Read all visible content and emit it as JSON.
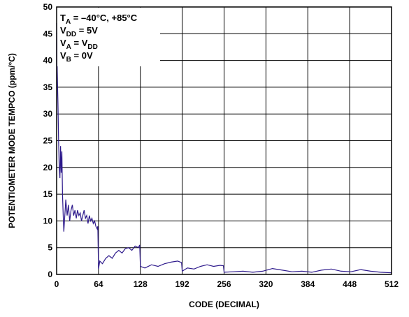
{
  "chart_data": {
    "type": "line",
    "xlabel": "CODE (DECIMAL)",
    "ylabel": "POTENTIOMETER MODE TEMPCO (ppm/°C)",
    "xlim": [
      0,
      512
    ],
    "ylim": [
      0,
      50
    ],
    "xticks": [
      0,
      64,
      128,
      192,
      256,
      320,
      384,
      448,
      512
    ],
    "yticks": [
      0,
      5,
      10,
      15,
      20,
      25,
      30,
      35,
      40,
      45,
      50
    ],
    "grid": true,
    "series_color": "#2e1a8c",
    "annotations": [
      {
        "main": "T",
        "sub": "A",
        "rest": " = –40°C, +85°C"
      },
      {
        "main": "V",
        "sub": "DD",
        "rest": " = 5V"
      },
      {
        "main": "V",
        "sub": "A",
        "rest": " = V",
        "sub2": "DD"
      },
      {
        "main": "V",
        "sub": "B",
        "rest": " = 0V"
      }
    ],
    "series": [
      {
        "x": [
          0,
          1,
          2,
          3,
          4,
          5,
          6,
          7,
          8,
          9,
          10,
          11,
          12,
          13,
          14,
          16,
          18,
          20,
          22,
          24,
          26,
          28,
          30,
          32,
          34,
          36,
          38,
          40,
          42,
          44,
          46,
          48,
          50,
          52,
          54,
          56,
          58,
          60,
          62,
          63,
          64,
          66,
          70,
          75,
          80,
          85,
          90,
          95,
          100,
          105,
          110,
          115,
          120,
          125,
          127,
          128,
          135,
          145,
          155,
          165,
          175,
          185,
          191,
          192,
          200,
          210,
          220,
          230,
          240,
          250,
          255,
          256,
          270,
          285,
          300,
          315,
          330,
          345,
          360,
          375,
          390,
          405,
          420,
          435,
          450,
          465,
          480,
          495,
          512
        ],
        "y": [
          47,
          38,
          32,
          25,
          20,
          18,
          24,
          19,
          23,
          15,
          11,
          8,
          10,
          12,
          14,
          11,
          13,
          10,
          12,
          13,
          11,
          12,
          10.5,
          12,
          11,
          11.5,
          10,
          11,
          12,
          10.5,
          11,
          9.5,
          11,
          10,
          10.5,
          9.5,
          10,
          9,
          8.5,
          9,
          1,
          2.5,
          2,
          3,
          3.5,
          3,
          4,
          4.5,
          4,
          4.8,
          5,
          4.5,
          5.3,
          5,
          5.5,
          1.5,
          1.2,
          1.8,
          1.5,
          2,
          2.3,
          2.5,
          2.2,
          0.6,
          1.2,
          1,
          1.5,
          1.8,
          1.5,
          1.7,
          1.6,
          0.4,
          0.5,
          0.6,
          0.4,
          0.6,
          1.1,
          0.8,
          0.5,
          0.6,
          0.4,
          0.8,
          1,
          0.6,
          0.5,
          0.9,
          0.6,
          0.4,
          0.3
        ]
      }
    ]
  }
}
